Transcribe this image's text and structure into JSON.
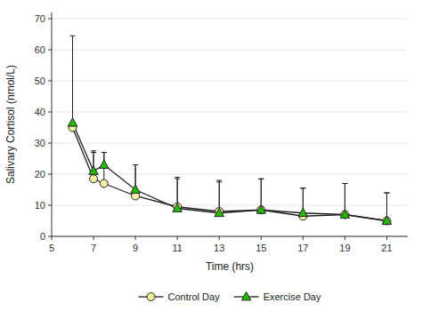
{
  "chart_data": {
    "type": "line",
    "x": [
      6,
      7,
      7.5,
      9,
      11,
      13,
      15,
      17,
      19,
      21
    ],
    "xlabel": "Time (hrs)",
    "ylabel": "Salivary Cortisol (nmol/L)",
    "xlim": [
      5,
      22
    ],
    "ylim": [
      0,
      72
    ],
    "xticks": [
      5,
      7,
      9,
      11,
      13,
      15,
      17,
      19,
      21
    ],
    "yticks": [
      0,
      10,
      20,
      30,
      40,
      50,
      60,
      70
    ],
    "legend": "bottom",
    "series": [
      {
        "name": "Control Day",
        "color": "#f5f0a0",
        "marker": "circle",
        "values": [
          35,
          18.5,
          17,
          13,
          9.5,
          8,
          8.5,
          6.5,
          7,
          5
        ],
        "error_upper": [
          0,
          9,
          10,
          10,
          9,
          10,
          10,
          9,
          10,
          9
        ],
        "error_lower": [
          0,
          0,
          0,
          0,
          0,
          0,
          0,
          0,
          0,
          0
        ]
      },
      {
        "name": "Exercise Day",
        "color": "#22bb00",
        "marker": "triangle",
        "values": [
          36.5,
          21,
          23,
          15,
          9,
          7.5,
          8.5,
          7.5,
          7,
          5
        ],
        "error_upper": [
          28,
          6,
          4,
          8,
          10,
          10,
          10,
          8,
          10,
          9
        ],
        "error_lower": [
          0,
          0,
          0,
          0,
          0,
          0,
          0,
          0,
          0,
          0
        ]
      }
    ]
  }
}
